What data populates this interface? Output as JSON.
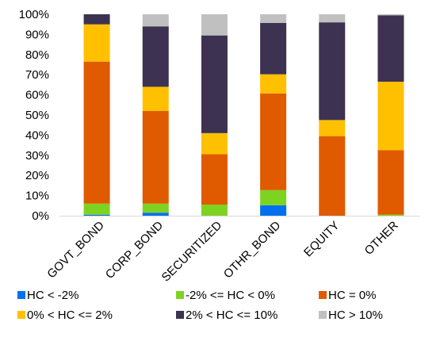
{
  "chart_data": {
    "type": "bar",
    "stacked": true,
    "orientation": "vertical",
    "categories": [
      "GOVT_BOND",
      "CORP_BOND",
      "SECURITIZED",
      "OTHR_BOND",
      "EQUITY",
      "OTHER"
    ],
    "series": [
      {
        "name": "HC < -2%",
        "color": "#0070F0",
        "values": [
          0.5,
          1.5,
          0,
          5.2,
          0,
          0
        ]
      },
      {
        "name": "-2% <= HC < 0%",
        "color": "#7ED321",
        "values": [
          5.5,
          4.5,
          5.5,
          7.5,
          0,
          0.5
        ]
      },
      {
        "name": "HC = 0%",
        "color": "#E05A00",
        "values": [
          70.5,
          46,
          25,
          48,
          39.5,
          32
        ]
      },
      {
        "name": "0% < HC <= 2%",
        "color": "#FFC000",
        "values": [
          18.5,
          12,
          10.5,
          9.5,
          8,
          34
        ]
      },
      {
        "name": "2% < HC <= 10%",
        "color": "#3D3252",
        "values": [
          5,
          30,
          48.5,
          25.5,
          48.5,
          33
        ]
      },
      {
        "name": "HC > 10%",
        "color": "#C0C0C0",
        "values": [
          0,
          6,
          10.5,
          4.3,
          4,
          0.5
        ]
      }
    ],
    "y_ticks": [
      "0%",
      "10%",
      "20%",
      "30%",
      "40%",
      "50%",
      "60%",
      "70%",
      "80%",
      "90%",
      "100%"
    ],
    "ylim": [
      0,
      100
    ],
    "grid": false,
    "legend_position": "bottom"
  }
}
